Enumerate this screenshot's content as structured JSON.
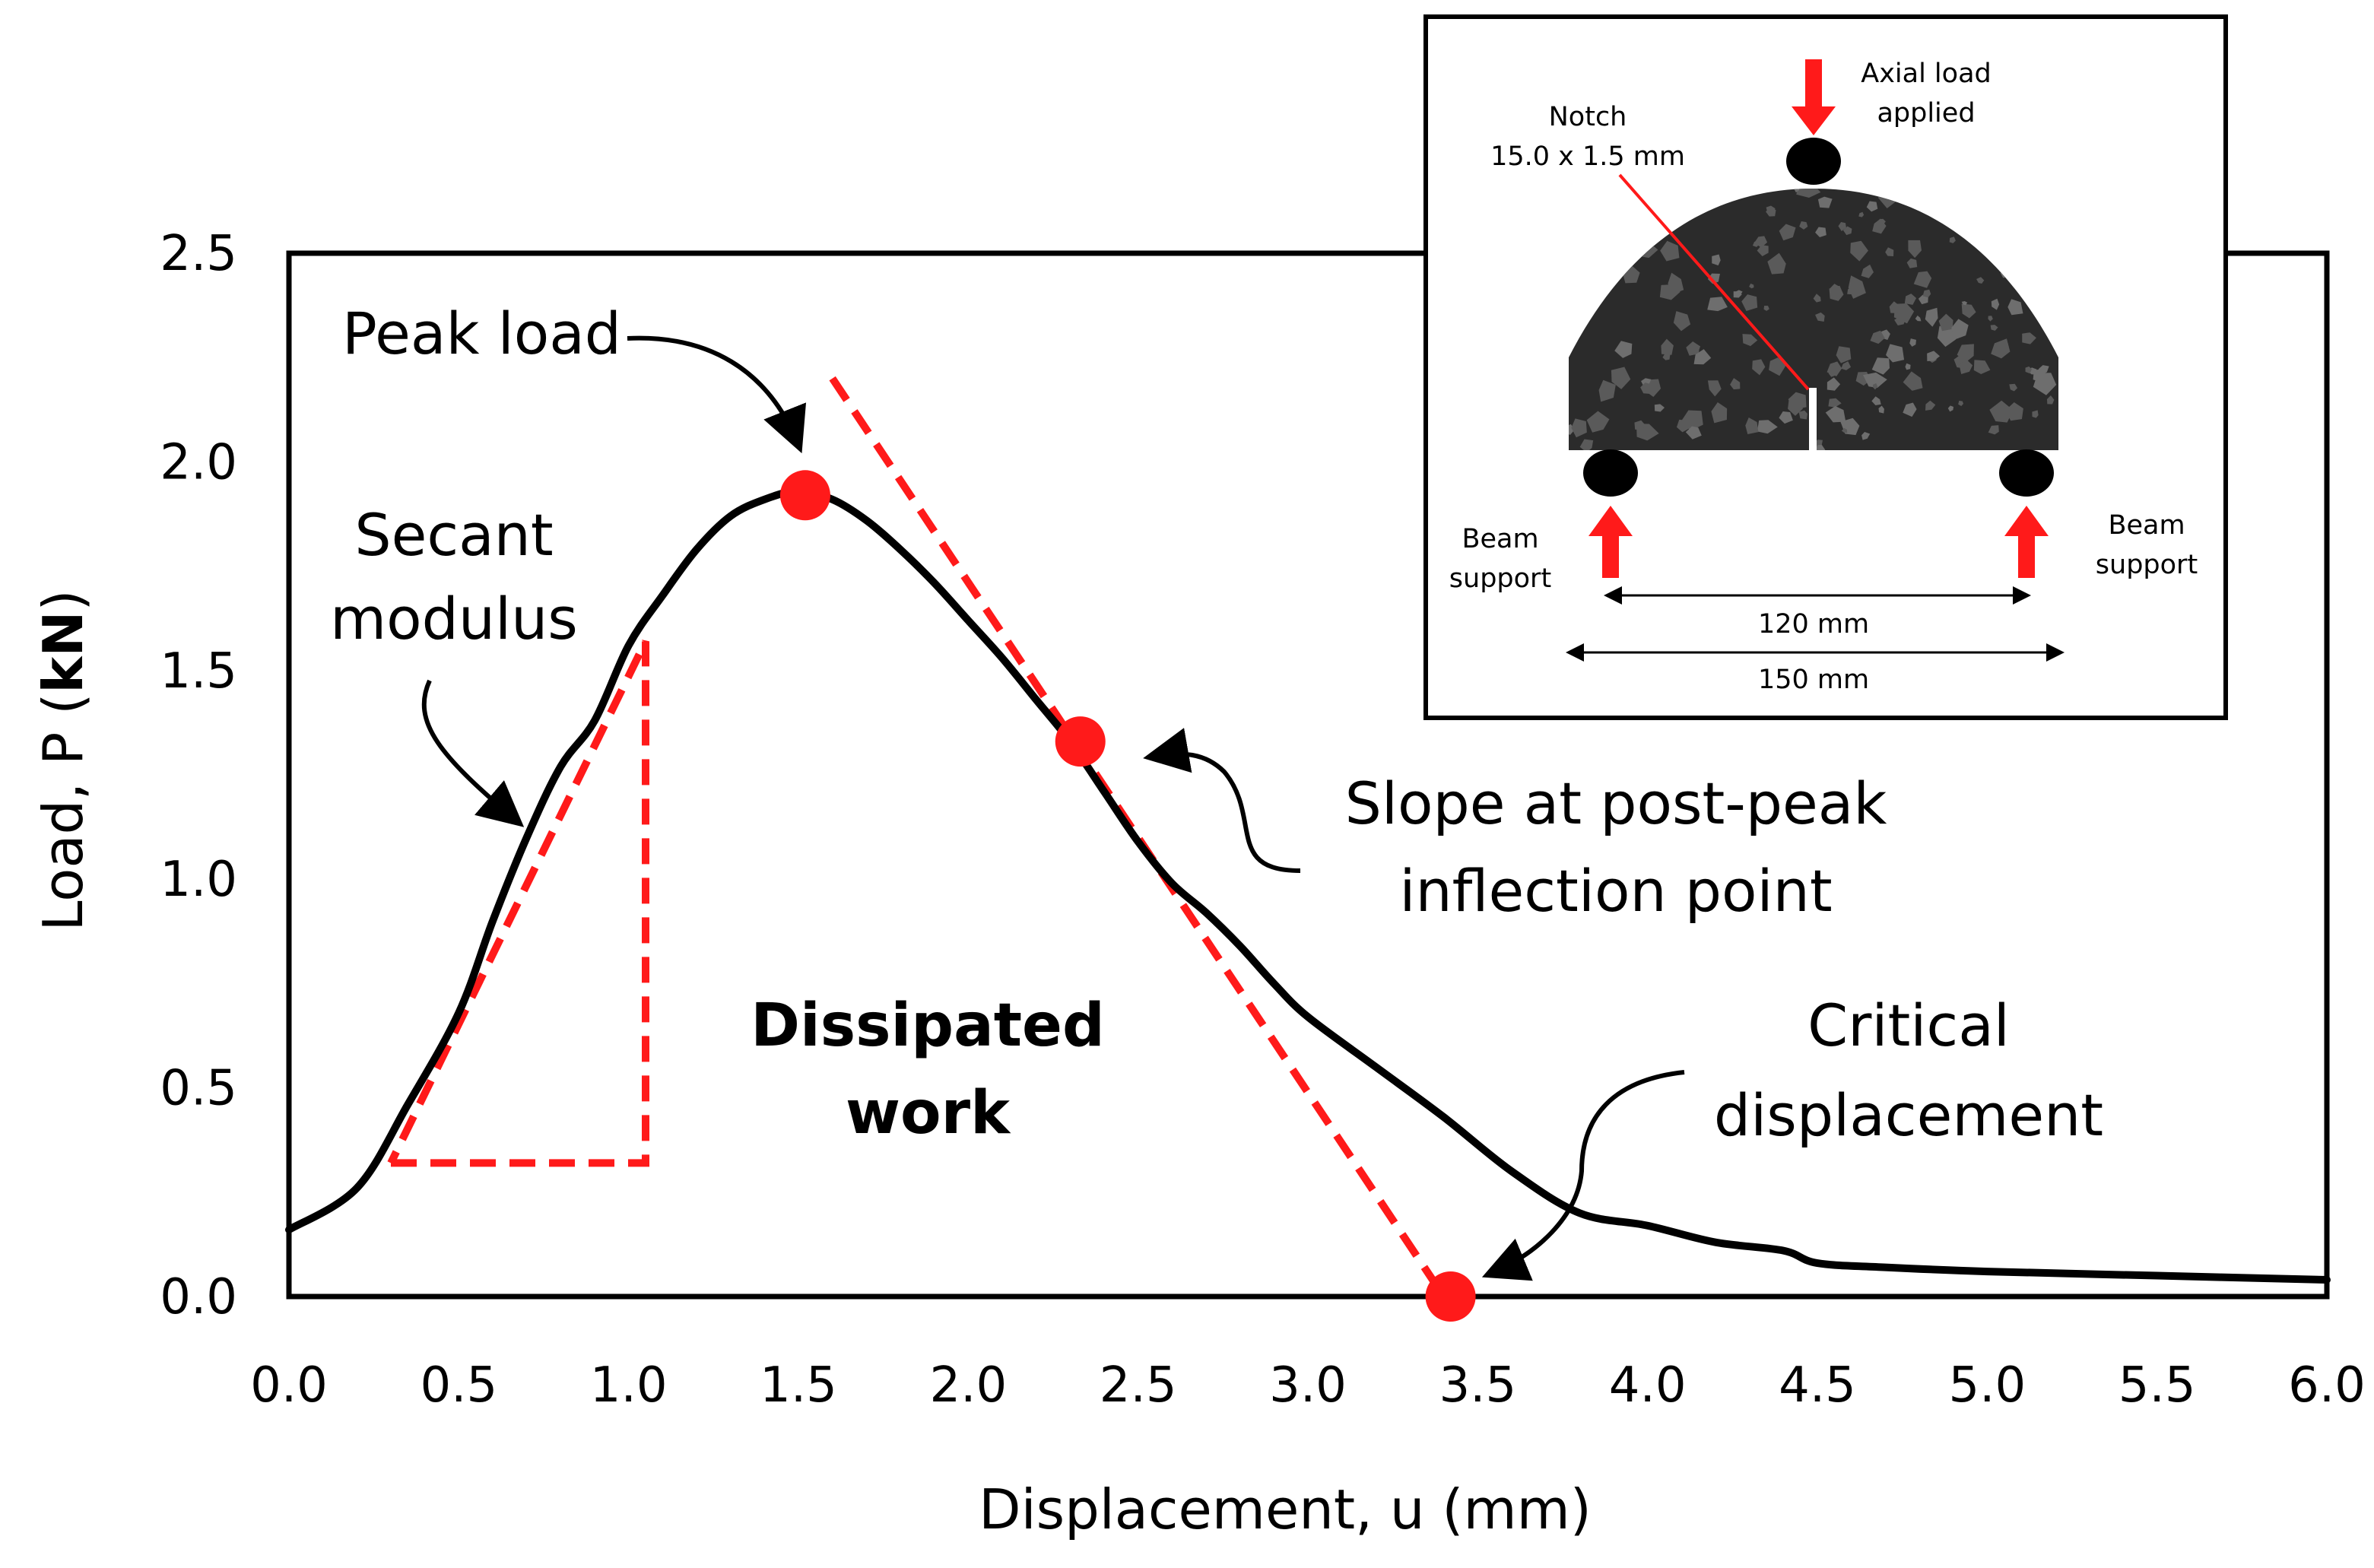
{
  "chart_data": {
    "type": "line",
    "title": "",
    "xlabel": "Displacement, u (mm)",
    "ylabel_parts": [
      "Load, P (",
      "kN",
      ")"
    ],
    "xlim": [
      0,
      6
    ],
    "ylim": [
      0,
      2.5
    ],
    "xticks": [
      "0.0",
      "0.5",
      "1.0",
      "1.5",
      "2.0",
      "2.5",
      "3.0",
      "3.5",
      "4.0",
      "4.5",
      "5.0",
      "5.5",
      "6.0"
    ],
    "yticks": [
      "0.0",
      "0.5",
      "1.0",
      "1.5",
      "2.0",
      "2.5"
    ],
    "grid": false,
    "series": [
      {
        "name": "Load-displacement curve",
        "color": "#000000",
        "x": [
          0.0,
          0.2,
          0.35,
          0.5,
          0.6,
          0.7,
          0.8,
          0.9,
          1.0,
          1.1,
          1.2,
          1.3,
          1.4,
          1.5,
          1.6,
          1.7,
          1.8,
          1.9,
          2.0,
          2.1,
          2.2,
          2.3,
          2.4,
          2.5,
          2.6,
          2.7,
          2.8,
          2.9,
          3.0,
          3.2,
          3.4,
          3.6,
          3.8,
          4.0,
          4.2,
          4.4,
          4.5,
          4.7,
          5.0,
          5.5,
          6.0
        ],
        "y": [
          0.16,
          0.26,
          0.46,
          0.68,
          0.9,
          1.1,
          1.27,
          1.38,
          1.56,
          1.68,
          1.79,
          1.87,
          1.91,
          1.93,
          1.91,
          1.86,
          1.79,
          1.71,
          1.62,
          1.53,
          1.43,
          1.33,
          1.21,
          1.09,
          0.99,
          0.92,
          0.84,
          0.75,
          0.67,
          0.55,
          0.43,
          0.3,
          0.2,
          0.17,
          0.13,
          0.11,
          0.08,
          0.07,
          0.06,
          0.05,
          0.04
        ]
      }
    ],
    "secant_modulus_triangle": {
      "color": "#ff1a1a",
      "points": [
        [
          0.3,
          0.32
        ],
        [
          1.05,
          0.32
        ],
        [
          1.05,
          1.57
        ]
      ]
    },
    "post_peak_slope_line": {
      "color": "#ff1a1a",
      "from": [
        1.6,
        2.2
      ],
      "to": [
        3.4,
        0.0
      ]
    },
    "key_points": [
      {
        "name": "Peak load",
        "x": 1.52,
        "y": 1.92,
        "color": "#ff1a1a"
      },
      {
        "name": "Post-peak inflection point",
        "x": 2.33,
        "y": 1.33,
        "color": "#ff1a1a"
      },
      {
        "name": "Critical displacement",
        "x": 3.42,
        "y": 0.0,
        "color": "#ff1a1a"
      }
    ],
    "annotations": {
      "peak_load": "Peak load",
      "secant_line1": "Secant",
      "secant_line2": "modulus",
      "dissipated_line1": "Dissipated",
      "dissipated_line2": "work",
      "slope_line1": "Slope at post-peak",
      "slope_line2": "inflection point",
      "critical_line1": "Critical",
      "critical_line2": "displacement"
    }
  },
  "inset": {
    "notch_line1": "Notch",
    "notch_line2": "15.0 x 1.5 mm",
    "axial_line1": "Axial load",
    "axial_line2": "applied",
    "left_support_line1": "Beam",
    "left_support_line2": "support",
    "right_support_line1": "Beam",
    "right_support_line2": "support",
    "span_inner": "120 mm",
    "span_outer": "150 mm"
  },
  "colors": {
    "accent": "#ff1a1a",
    "specimen": "#2b2b2b",
    "aggregate": "#5a5a5a"
  }
}
